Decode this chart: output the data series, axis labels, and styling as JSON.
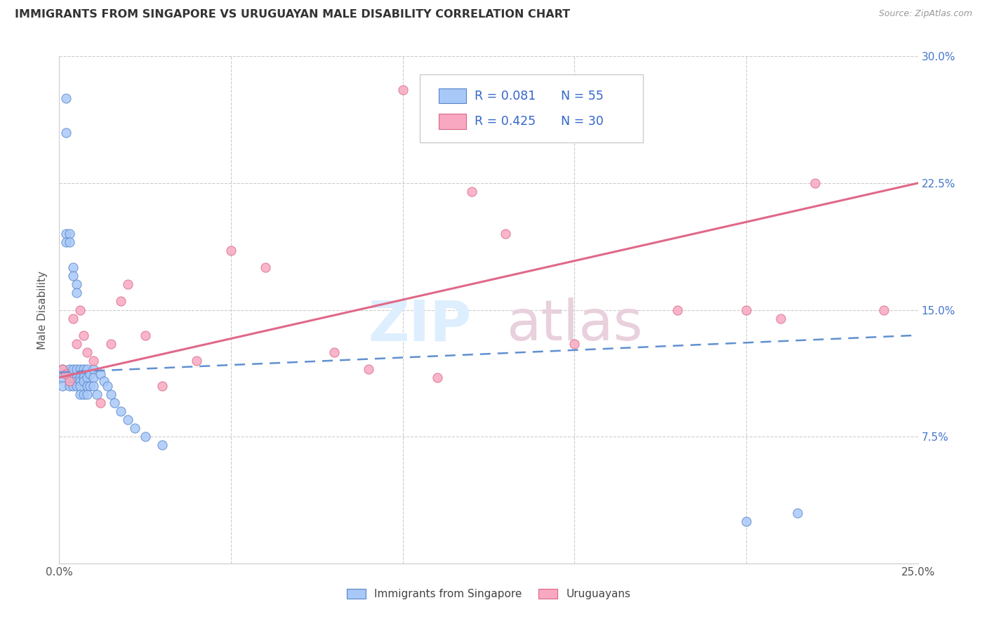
{
  "title": "IMMIGRANTS FROM SINGAPORE VS URUGUAYAN MALE DISABILITY CORRELATION CHART",
  "source": "Source: ZipAtlas.com",
  "ylabel": "Male Disability",
  "xlim": [
    0.0,
    0.25
  ],
  "ylim": [
    0.0,
    0.3
  ],
  "xtick_positions": [
    0.0,
    0.05,
    0.1,
    0.15,
    0.2,
    0.25
  ],
  "xticklabels": [
    "0.0%",
    "",
    "",
    "",
    "",
    "25.0%"
  ],
  "ytick_positions": [
    0.0,
    0.075,
    0.15,
    0.225,
    0.3
  ],
  "yticklabels": [
    "",
    "7.5%",
    "15.0%",
    "22.5%",
    "30.0%"
  ],
  "legend_label1": "Immigrants from Singapore",
  "legend_label2": "Uruguayans",
  "color1": "#a8c8f8",
  "color2": "#f8a8c0",
  "edge1": "#5585c8",
  "edge2": "#d86888",
  "line1_color": "#6090d0",
  "line2_color": "#e06888",
  "legend_color": "#3366cc",
  "sg_x": [
    0.001,
    0.001,
    0.001,
    0.002,
    0.002,
    0.002,
    0.002,
    0.003,
    0.003,
    0.003,
    0.003,
    0.003,
    0.004,
    0.004,
    0.004,
    0.004,
    0.004,
    0.005,
    0.005,
    0.005,
    0.005,
    0.005,
    0.005,
    0.006,
    0.006,
    0.006,
    0.006,
    0.006,
    0.007,
    0.007,
    0.007,
    0.007,
    0.007,
    0.008,
    0.008,
    0.008,
    0.008,
    0.009,
    0.009,
    0.01,
    0.01,
    0.01,
    0.011,
    0.012,
    0.013,
    0.014,
    0.015,
    0.016,
    0.018,
    0.02,
    0.022,
    0.025,
    0.03,
    0.2,
    0.215
  ],
  "sg_y": [
    0.115,
    0.11,
    0.105,
    0.275,
    0.255,
    0.195,
    0.19,
    0.195,
    0.19,
    0.115,
    0.11,
    0.105,
    0.175,
    0.17,
    0.115,
    0.11,
    0.105,
    0.165,
    0.16,
    0.115,
    0.11,
    0.108,
    0.105,
    0.115,
    0.11,
    0.108,
    0.105,
    0.1,
    0.115,
    0.112,
    0.11,
    0.108,
    0.1,
    0.115,
    0.11,
    0.105,
    0.1,
    0.112,
    0.105,
    0.115,
    0.11,
    0.105,
    0.1,
    0.112,
    0.108,
    0.105,
    0.1,
    0.095,
    0.09,
    0.085,
    0.08,
    0.075,
    0.07,
    0.025,
    0.03
  ],
  "ug_x": [
    0.001,
    0.002,
    0.003,
    0.004,
    0.005,
    0.006,
    0.007,
    0.008,
    0.01,
    0.012,
    0.015,
    0.018,
    0.02,
    0.025,
    0.03,
    0.04,
    0.05,
    0.06,
    0.08,
    0.09,
    0.1,
    0.11,
    0.12,
    0.13,
    0.15,
    0.18,
    0.2,
    0.21,
    0.22,
    0.24
  ],
  "ug_y": [
    0.115,
    0.112,
    0.108,
    0.145,
    0.13,
    0.15,
    0.135,
    0.125,
    0.12,
    0.095,
    0.13,
    0.155,
    0.165,
    0.135,
    0.105,
    0.12,
    0.185,
    0.175,
    0.125,
    0.115,
    0.28,
    0.11,
    0.22,
    0.195,
    0.13,
    0.15,
    0.15,
    0.145,
    0.225,
    0.15
  ],
  "watermark_zip_color": "#ddeeff",
  "watermark_atlas_color": "#e8d0dc"
}
